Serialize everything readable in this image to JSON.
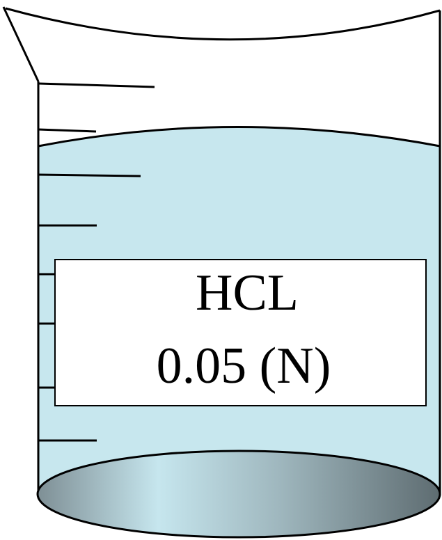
{
  "label": {
    "line1": "HCL",
    "line2": "0.05 (N)"
  },
  "colors": {
    "liquid": "#c7e7ee",
    "outline": "#000000",
    "label_background": "#ffffff",
    "base_gradient": [
      "#7e8f95",
      "#c6e6ee",
      "#9fb7be",
      "#5e6c71"
    ]
  }
}
